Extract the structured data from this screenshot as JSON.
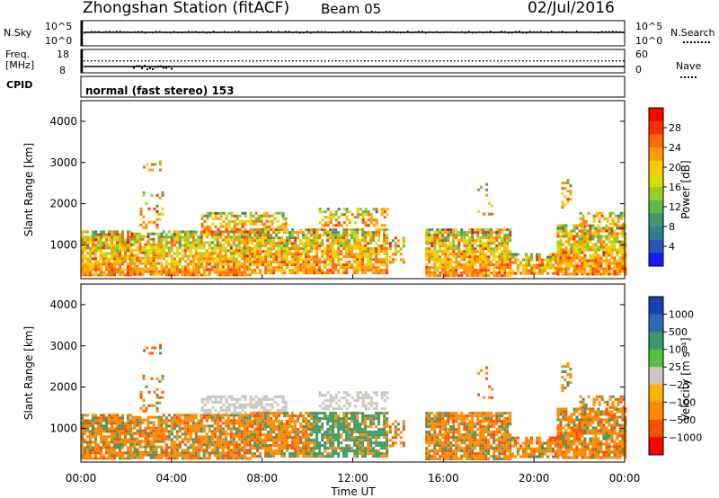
{
  "header": {
    "station": "Zhongshan Station (fitACF)",
    "beam": "Beam 05",
    "date": "02/Jul/2016"
  },
  "aux_panels": {
    "nsky_label": "N.Sky",
    "nsky_ticks": [
      "10^5",
      "10^0"
    ],
    "nsearch_label": "N.Search",
    "nsearch_ticks": [
      "10^5",
      "10^0"
    ],
    "freq_label": "Freq.",
    "freq_unit": "[MHz]",
    "freq_ticks": [
      "18",
      "8"
    ],
    "nave_label": "Nave",
    "nave_ticks": [
      "60",
      "0"
    ],
    "cpid_label": "CPID",
    "cpid_text": "normal (fast stereo) 153"
  },
  "chart_data": [
    {
      "type": "heatmap",
      "title": "",
      "xlabel": "",
      "ylabel": "Slant Range [km]",
      "ylim": [
        180,
        4500
      ],
      "yticks": [
        "4000",
        "3000",
        "2000",
        "1000"
      ],
      "xlim": [
        "00:00",
        "24:00"
      ],
      "colorbar": {
        "label": "Power [dB]",
        "ticks": [
          "28",
          "24",
          "20",
          "16",
          "12",
          "8",
          "4"
        ],
        "colors": [
          "#ff0000",
          "#ff3000",
          "#ff6a00",
          "#ff9a00",
          "#ffc800",
          "#d6de00",
          "#98d020",
          "#5cb848",
          "#3e9a6a",
          "#2f7f8f",
          "#2a55b8",
          "#1a1aff"
        ]
      }
    },
    {
      "type": "heatmap",
      "title": "",
      "xlabel": "Time UT",
      "ylabel": "Slant Range [km]",
      "ylim": [
        180,
        4500
      ],
      "yticks": [
        "4000",
        "3000",
        "2000",
        "1000"
      ],
      "xticks": [
        "00:00",
        "04:00",
        "08:00",
        "12:00",
        "16:00",
        "20:00",
        "00:00"
      ],
      "colorbar": {
        "label": "Velocity [m s⁻¹]",
        "ticks": [
          "1000",
          "500",
          "100",
          "25",
          "−25",
          "−100",
          "−500",
          "−1000"
        ],
        "colors": [
          "#1e3eb8",
          "#2f68b0",
          "#3c9a68",
          "#58c040",
          "#c8c8c0",
          "#ffb000",
          "#ff8a00",
          "#ff5000",
          "#ff0000"
        ]
      }
    }
  ]
}
